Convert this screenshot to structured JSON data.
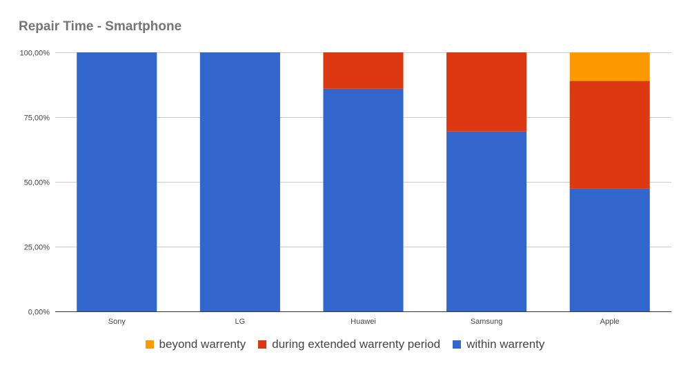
{
  "chart_data": {
    "type": "bar",
    "stacked": true,
    "title": "Repair Time - Smartphone",
    "xlabel": "",
    "ylabel": "",
    "categories": [
      "Sony",
      "LG",
      "Huawei",
      "Samsung",
      "Apple"
    ],
    "ylim": [
      0,
      100
    ],
    "yticks": [
      0,
      25,
      50,
      75,
      100
    ],
    "ytick_labels": [
      "0,00%",
      "25,00%",
      "50,00%",
      "75,00%",
      "100,00%"
    ],
    "grid": true,
    "legend_position": "bottom",
    "series": [
      {
        "name": "within warrenty",
        "color": "#3366cc",
        "values": [
          100,
          100,
          86,
          69.5,
          47.5
        ]
      },
      {
        "name": "during extended warrenty period",
        "color": "#dc3912",
        "values": [
          0,
          0,
          14,
          30.5,
          41.5
        ]
      },
      {
        "name": "beyond warrenty",
        "color": "#ff9900",
        "values": [
          0,
          0,
          0,
          0,
          11
        ]
      }
    ],
    "legend_order": [
      "beyond warrenty",
      "during extended warrenty period",
      "within warrenty"
    ]
  }
}
